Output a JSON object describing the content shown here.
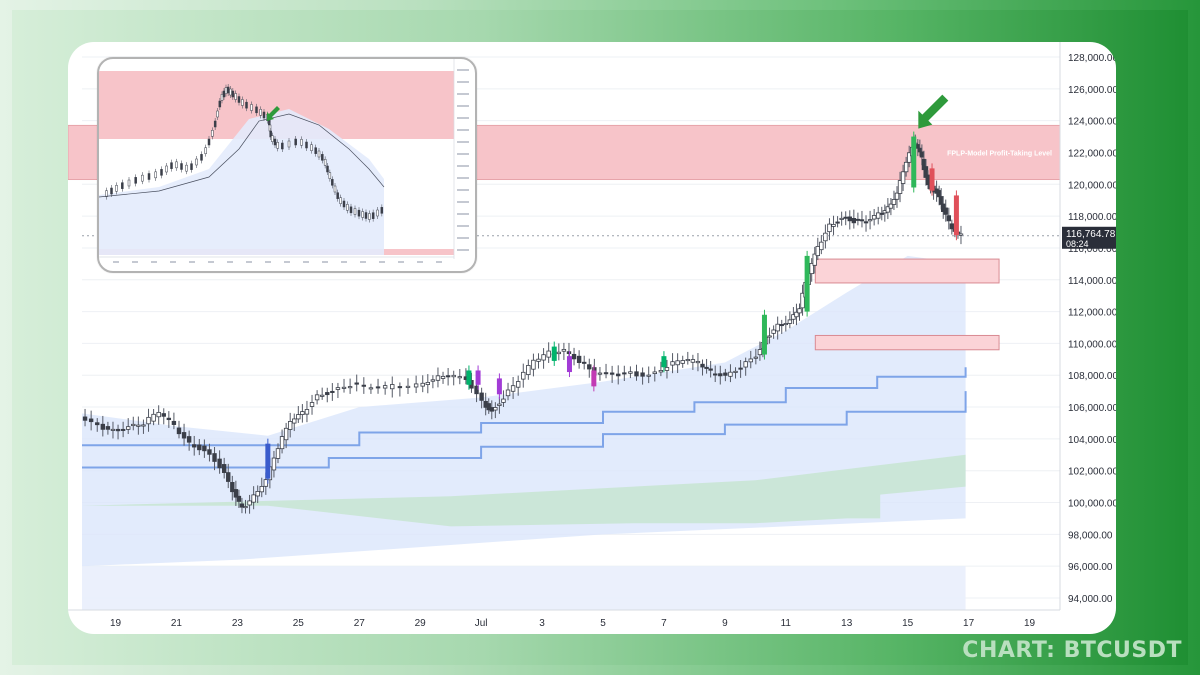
{
  "chart_data": {
    "type": "candlestick",
    "symbol": "BTCUSDT",
    "y_axis": {
      "min": 93000,
      "max": 129000,
      "tick_labels": [
        "128,000.00",
        "126,000.00",
        "124,000.00",
        "122,000.00",
        "120,000.00",
        "118,000.00",
        "116,000.00",
        "114,000.00",
        "112,000.00",
        "110,000.00",
        "108,000.00",
        "106,000.00",
        "104,000.00",
        "102,000.00",
        "100,000.00",
        "98,000.00",
        "96,000.00",
        "94,000.00"
      ],
      "tick_values": [
        128000,
        126000,
        124000,
        122000,
        120000,
        118000,
        116000,
        114000,
        112000,
        110000,
        108000,
        106000,
        104000,
        102000,
        100000,
        98000,
        96000,
        94000
      ]
    },
    "x_axis": {
      "tick_labels": [
        "19",
        "21",
        "23",
        "25",
        "27",
        "29",
        "Jul",
        "3",
        "5",
        "7",
        "9",
        "11",
        "13",
        "15",
        "17",
        "19"
      ],
      "tick_days": [
        19,
        21,
        23,
        25,
        27,
        29,
        31,
        33,
        35,
        37,
        39,
        41,
        43,
        45,
        47,
        49
      ]
    },
    "last_price": {
      "label": "116,764.78",
      "countdown": "08:24",
      "value": 116764.78,
      "color": "#2a2e39"
    },
    "zones": [
      {
        "label": "FPLP-Model Profit-Taking Level",
        "top": 123700,
        "bottom": 120300,
        "color": "#f7c4c9"
      },
      {
        "label": "",
        "top": 115300,
        "bottom": 113800,
        "color": "#fbd3d7"
      },
      {
        "label": "",
        "top": 110500,
        "bottom": 109600,
        "color": "#fbd3d7"
      }
    ],
    "price_path": [
      [
        17.9,
        105300
      ],
      [
        18.5,
        104800
      ],
      [
        19,
        104500
      ],
      [
        19.5,
        104800
      ],
      [
        20,
        105000
      ],
      [
        20.5,
        105700
      ],
      [
        21,
        104800
      ],
      [
        21.5,
        103700
      ],
      [
        22,
        103300
      ],
      [
        22.5,
        102300
      ],
      [
        22.9,
        100700
      ],
      [
        23.2,
        99600
      ],
      [
        23.6,
        100400
      ],
      [
        24,
        101500
      ],
      [
        24.4,
        103500
      ],
      [
        24.8,
        105100
      ],
      [
        25.2,
        105600
      ],
      [
        25.7,
        106700
      ],
      [
        26.2,
        107000
      ],
      [
        26.8,
        107400
      ],
      [
        27.5,
        107200
      ],
      [
        28.2,
        107300
      ],
      [
        29,
        107400
      ],
      [
        29.5,
        107800
      ],
      [
        30,
        108000
      ],
      [
        30.6,
        107700
      ],
      [
        31.1,
        106300
      ],
      [
        31.4,
        105700
      ],
      [
        31.8,
        106600
      ],
      [
        32.3,
        107700
      ],
      [
        32.8,
        108900
      ],
      [
        33.3,
        109400
      ],
      [
        33.8,
        109600
      ],
      [
        34.3,
        108900
      ],
      [
        34.8,
        108100
      ],
      [
        35.4,
        108000
      ],
      [
        36,
        108100
      ],
      [
        36.6,
        108000
      ],
      [
        37.2,
        108600
      ],
      [
        37.7,
        109000
      ],
      [
        38.2,
        108800
      ],
      [
        38.6,
        108200
      ],
      [
        39.1,
        108000
      ],
      [
        39.6,
        108500
      ],
      [
        40.1,
        109200
      ],
      [
        40.4,
        110300
      ],
      [
        40.8,
        111100
      ],
      [
        41.2,
        111500
      ],
      [
        41.5,
        112300
      ],
      [
        41.8,
        114500
      ],
      [
        42.1,
        116000
      ],
      [
        42.5,
        117400
      ],
      [
        42.9,
        117900
      ],
      [
        43.3,
        117700
      ],
      [
        43.7,
        117600
      ],
      [
        44.1,
        118100
      ],
      [
        44.4,
        118500
      ],
      [
        44.7,
        119500
      ],
      [
        45,
        121500
      ],
      [
        45.3,
        122600
      ],
      [
        45.5,
        121600
      ],
      [
        45.7,
        119900
      ],
      [
        46,
        119500
      ],
      [
        46.2,
        118400
      ],
      [
        46.5,
        117200
      ],
      [
        46.8,
        116764
      ]
    ],
    "highlight_candles": [
      {
        "day": 24.0,
        "open": 101500,
        "close": 103700,
        "color": "#3a5ccc"
      },
      {
        "day": 30.6,
        "open": 107400,
        "close": 108300,
        "color": "#00b36b"
      },
      {
        "day": 30.9,
        "open": 108300,
        "close": 107400,
        "color": "#a23bd6"
      },
      {
        "day": 31.6,
        "open": 106800,
        "close": 107800,
        "color": "#a23bd6"
      },
      {
        "day": 33.4,
        "open": 108900,
        "close": 109800,
        "color": "#00b36b"
      },
      {
        "day": 33.9,
        "open": 109200,
        "close": 108200,
        "color": "#a23bd6"
      },
      {
        "day": 34.7,
        "open": 108300,
        "close": 107300,
        "color": "#c23bb4"
      },
      {
        "day": 37.0,
        "open": 108500,
        "close": 109200,
        "color": "#00b36b"
      },
      {
        "day": 40.3,
        "open": 109300,
        "close": 111800,
        "color": "#2fb85a"
      },
      {
        "day": 41.7,
        "open": 112000,
        "close": 115500,
        "color": "#2fb85a"
      },
      {
        "day": 45.2,
        "open": 119800,
        "close": 123000,
        "color": "#2fb85a"
      },
      {
        "day": 45.8,
        "open": 121000,
        "close": 119600,
        "color": "#e0505a"
      },
      {
        "day": 46.6,
        "open": 119300,
        "close": 116800,
        "color": "#e0505a"
      }
    ],
    "bands": {
      "upper_line": [
        [
          17.9,
          103600
        ],
        [
          24,
          103600
        ],
        [
          27,
          104400
        ],
        [
          31,
          105000
        ],
        [
          35,
          105700
        ],
        [
          38,
          106300
        ],
        [
          41,
          107200
        ],
        [
          44,
          107900
        ],
        [
          46.9,
          108500
        ]
      ],
      "lower_line": [
        [
          17.9,
          102200
        ],
        [
          22,
          102200
        ],
        [
          26,
          102800
        ],
        [
          31,
          103500
        ],
        [
          35,
          104300
        ],
        [
          39,
          104900
        ],
        [
          43,
          105700
        ],
        [
          46.9,
          107000
        ]
      ],
      "green_top": [
        [
          17.9,
          99800
        ],
        [
          24,
          100100
        ],
        [
          30,
          100400
        ],
        [
          36,
          101000
        ],
        [
          40,
          101400
        ],
        [
          43,
          102100
        ],
        [
          46.9,
          103000
        ]
      ],
      "green_bottom": [
        [
          17.9,
          99800
        ],
        [
          24,
          99800
        ],
        [
          30,
          98500
        ],
        [
          36,
          98700
        ],
        [
          40,
          98700
        ],
        [
          43,
          99000
        ],
        [
          44.1,
          99000
        ],
        [
          44.1,
          100500
        ],
        [
          46.9,
          101000
        ]
      ],
      "cloud_top": [
        [
          17.9,
          105600
        ],
        [
          21,
          104800
        ],
        [
          24,
          104200
        ],
        [
          27,
          106000
        ],
        [
          31,
          106600
        ],
        [
          35,
          107600
        ],
        [
          39,
          108800
        ],
        [
          41,
          110800
        ],
        [
          43,
          113200
        ],
        [
          45,
          115500
        ],
        [
          46.9,
          115000
        ]
      ],
      "cloud_bottom": [
        [
          17.9,
          96000
        ],
        [
          23,
          96400
        ],
        [
          29,
          97200
        ],
        [
          35,
          98000
        ],
        [
          41,
          98500
        ],
        [
          46.9,
          99000
        ]
      ]
    },
    "inset": {
      "arrow_color": "#2e9a3b",
      "zone_color": "#f7c4c9"
    },
    "colors": {
      "up": "#2a2e39",
      "down": "#2a2e39",
      "band_line": "#7ea4e8",
      "cloud": "#dbe6fb",
      "green_fill": "#c9e6d4",
      "arrow": "#2e9a3b",
      "grid": "#eef0f4"
    }
  },
  "footer": {
    "label": "CHART: BTCUSDT"
  }
}
